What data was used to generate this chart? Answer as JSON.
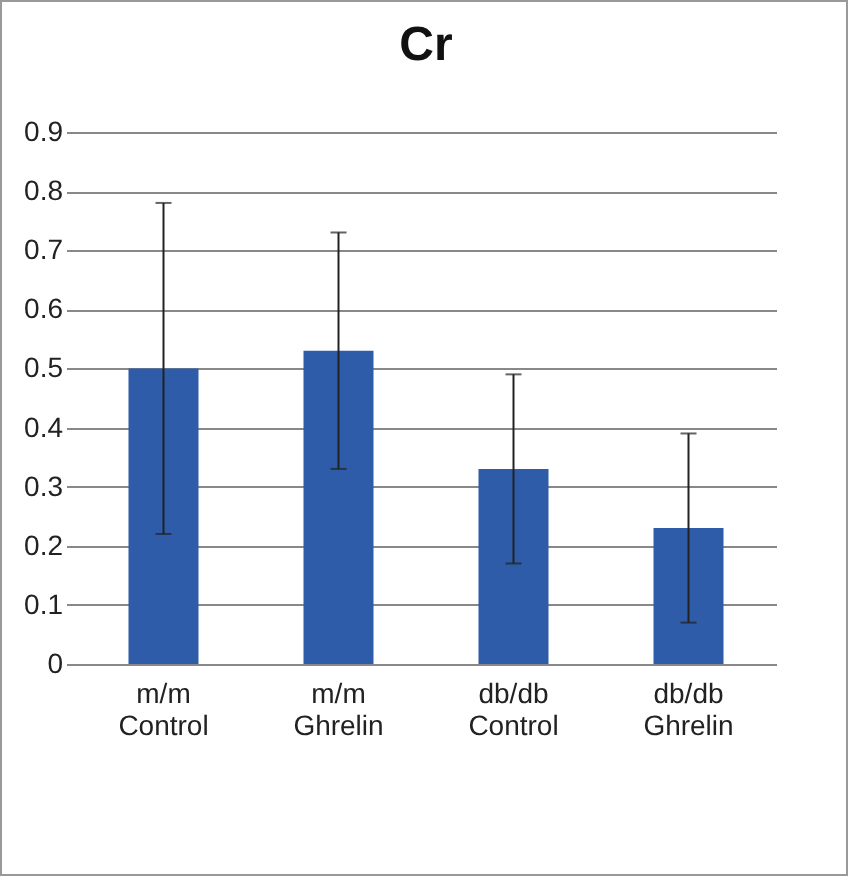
{
  "chart_data": {
    "type": "bar",
    "title": "Cr",
    "categories": [
      "m/m\nControl",
      "m/m\nGhrelin",
      "db/db\nControl",
      "db/db\nGhrelin"
    ],
    "values": [
      0.5,
      0.53,
      0.33,
      0.23
    ],
    "errors": [
      0.28,
      0.2,
      0.16,
      0.16
    ],
    "color": "#2e5ca8",
    "ylim": [
      0,
      0.9
    ],
    "yticks": [
      0,
      0.1,
      0.2,
      0.3,
      0.4,
      0.5,
      0.6,
      0.7,
      0.8,
      0.9
    ],
    "grid": "y"
  }
}
